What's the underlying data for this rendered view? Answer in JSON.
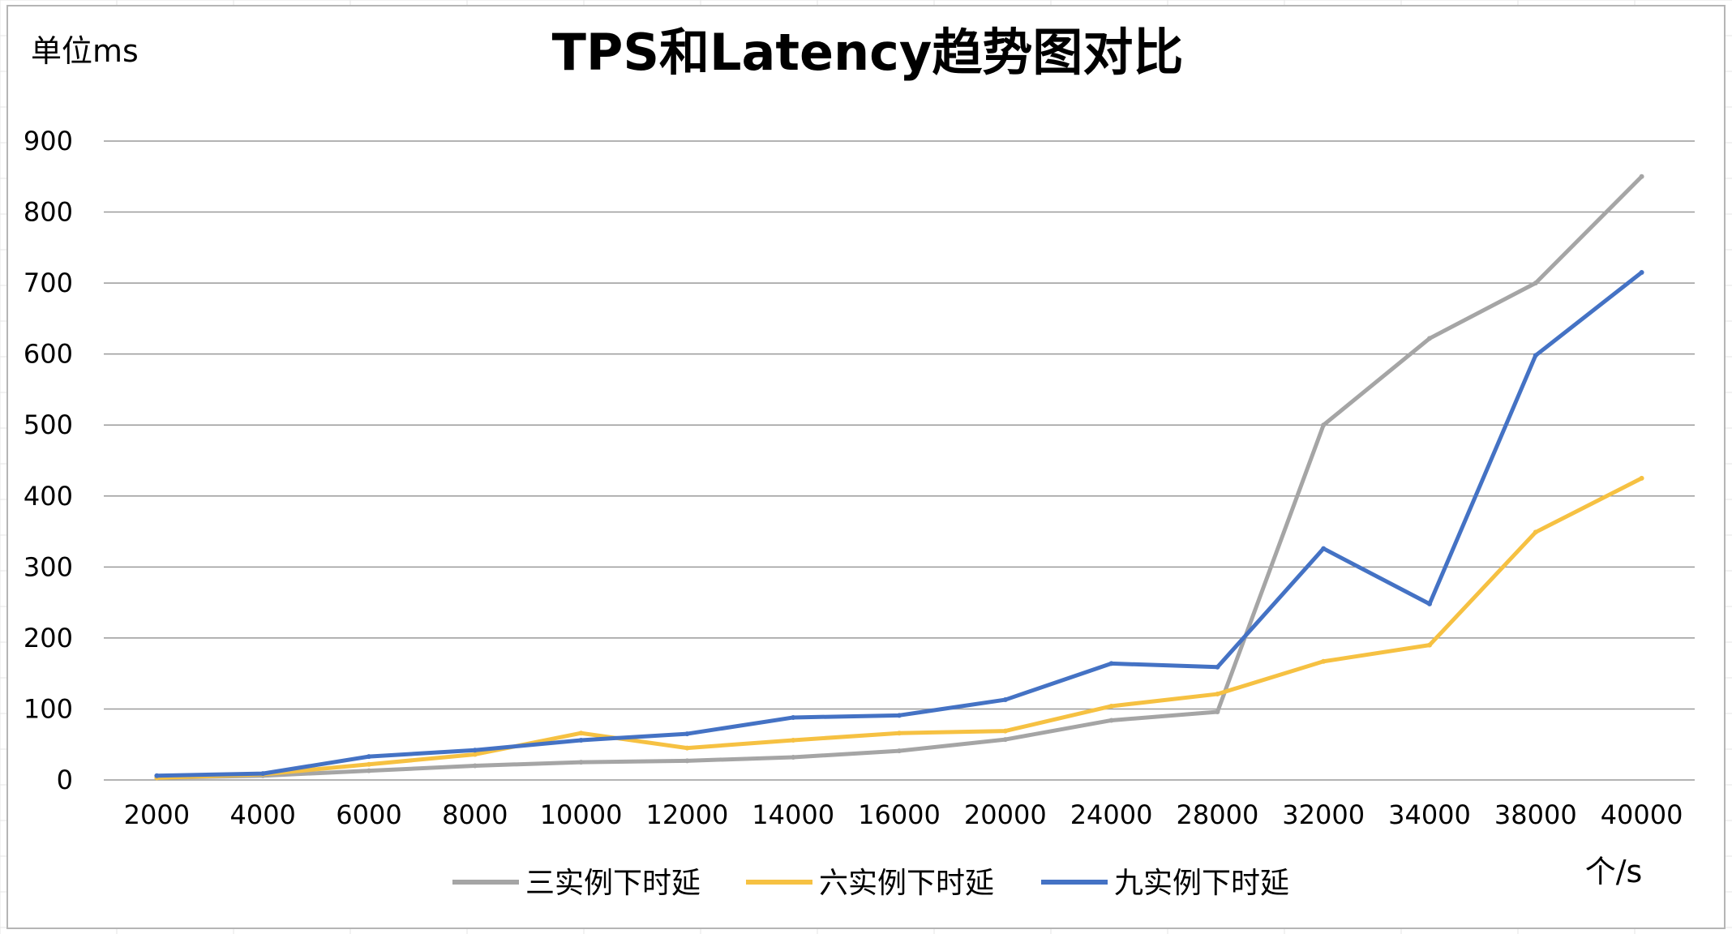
{
  "chart_data": {
    "type": "line",
    "title": "TPS和Latency趋势图对比",
    "y_unit_label": "单位ms",
    "x_unit_label": "个/s",
    "ylim": [
      0,
      900
    ],
    "yticks": [
      "0",
      "100",
      "200",
      "300",
      "400",
      "500",
      "600",
      "700",
      "800",
      "900"
    ],
    "grid": true,
    "legend_position": "bottom",
    "categories": [
      "2000",
      "4000",
      "6000",
      "8000",
      "10000",
      "12000",
      "14000",
      "16000",
      "20000",
      "24000",
      "28000",
      "32000",
      "34000",
      "38000",
      "40000"
    ],
    "series": [
      {
        "name": "三实例下时延",
        "color": "#a5a5a5",
        "values": [
          3,
          6,
          13,
          20,
          25,
          27,
          32,
          41,
          57,
          84,
          96,
          500,
          622,
          700,
          850
        ]
      },
      {
        "name": "六实例下时延",
        "color": "#f6c142",
        "values": [
          3,
          8,
          22,
          36,
          66,
          45,
          56,
          66,
          69,
          104,
          121,
          167,
          190,
          349,
          425
        ]
      },
      {
        "name": "九实例下时延",
        "color": "#4472c4",
        "values": [
          6,
          9,
          33,
          42,
          56,
          65,
          88,
          91,
          113,
          164,
          159,
          326,
          248,
          598,
          715
        ]
      }
    ]
  }
}
